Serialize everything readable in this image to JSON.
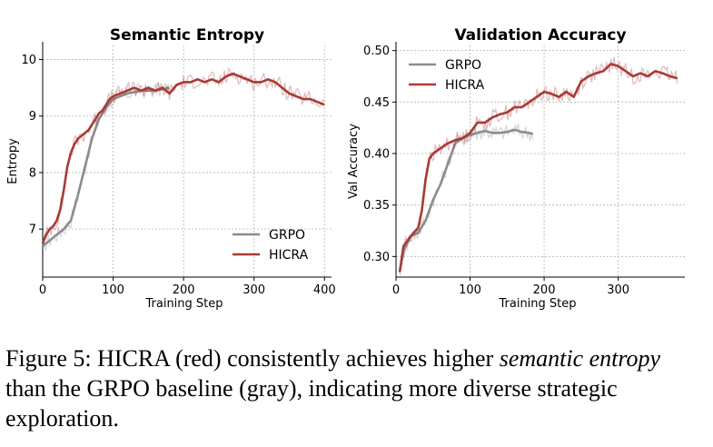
{
  "caption": {
    "prefix": "Figure 5: HICRA (red) consistently achieves higher ",
    "italic_1": "semantic entropy",
    "middle": " than the GRPO baseline (gray), indicating more diverse strategic exploration.",
    "full_text": "Figure 5: HICRA (red) consistently achieves higher semantic entropy than the GRPO baseline (gray), indicating more diverse strategic exploration."
  },
  "colors": {
    "grpo": "#8c8c8c",
    "hicra": "#a83a36"
  },
  "chart_data": [
    {
      "type": "line",
      "title": "Semantic Entropy",
      "xlabel": "Training Step",
      "ylabel": "Entropy",
      "xlim": [
        0,
        410
      ],
      "ylim": [
        6.15,
        10.25
      ],
      "xticks": [
        0,
        100,
        200,
        300,
        400
      ],
      "yticks": [
        7,
        8,
        9,
        10
      ],
      "grid": true,
      "legend_position": "lower-right",
      "series": [
        {
          "name": "GRPO",
          "x": [
            0,
            10,
            20,
            30,
            40,
            50,
            60,
            70,
            80,
            90,
            100,
            120,
            140,
            160,
            180
          ],
          "y": [
            6.7,
            6.8,
            6.9,
            7.0,
            7.15,
            7.6,
            8.1,
            8.6,
            8.95,
            9.15,
            9.3,
            9.4,
            9.45,
            9.45,
            9.5
          ]
        },
        {
          "name": "HICRA",
          "x": [
            0,
            5,
            10,
            15,
            20,
            25,
            30,
            35,
            40,
            45,
            50,
            55,
            60,
            65,
            70,
            75,
            80,
            85,
            90,
            95,
            100,
            110,
            120,
            130,
            140,
            150,
            160,
            170,
            180,
            190,
            200,
            210,
            220,
            230,
            240,
            250,
            260,
            270,
            280,
            290,
            300,
            310,
            320,
            330,
            340,
            350,
            360,
            370,
            380,
            390,
            400
          ],
          "y": [
            6.75,
            6.9,
            7.0,
            7.05,
            7.15,
            7.35,
            7.7,
            8.1,
            8.35,
            8.5,
            8.6,
            8.65,
            8.7,
            8.75,
            8.85,
            8.95,
            9.05,
            9.1,
            9.2,
            9.3,
            9.35,
            9.4,
            9.45,
            9.5,
            9.45,
            9.5,
            9.45,
            9.5,
            9.4,
            9.55,
            9.6,
            9.6,
            9.65,
            9.6,
            9.65,
            9.6,
            9.7,
            9.75,
            9.7,
            9.65,
            9.6,
            9.6,
            9.65,
            9.6,
            9.5,
            9.4,
            9.35,
            9.3,
            9.3,
            9.25,
            9.2
          ]
        }
      ]
    },
    {
      "type": "line",
      "title": "Validation Accuracy",
      "xlabel": "Training Step",
      "ylabel": "Val Accuracy",
      "xlim": [
        0,
        390
      ],
      "ylim": [
        0.28,
        0.505
      ],
      "xticks": [
        0,
        100,
        200,
        300
      ],
      "yticks": [
        0.3,
        0.35,
        0.4,
        0.45,
        0.5
      ],
      "grid": true,
      "legend_position": "top-left",
      "series": [
        {
          "name": "GRPO",
          "x": [
            5,
            10,
            20,
            30,
            40,
            50,
            60,
            70,
            80,
            90,
            100,
            110,
            120,
            130,
            140,
            150,
            160,
            170,
            180,
            185
          ],
          "y": [
            0.285,
            0.305,
            0.32,
            0.323,
            0.335,
            0.355,
            0.37,
            0.39,
            0.41,
            0.415,
            0.418,
            0.42,
            0.422,
            0.42,
            0.42,
            0.421,
            0.423,
            0.421,
            0.42,
            0.419
          ]
        },
        {
          "name": "HICRA",
          "x": [
            5,
            10,
            20,
            30,
            35,
            40,
            45,
            50,
            60,
            70,
            80,
            90,
            100,
            110,
            120,
            130,
            140,
            150,
            160,
            170,
            180,
            190,
            200,
            210,
            220,
            230,
            240,
            250,
            260,
            270,
            280,
            290,
            300,
            310,
            320,
            330,
            340,
            350,
            360,
            370,
            380
          ],
          "y": [
            0.285,
            0.31,
            0.32,
            0.328,
            0.345,
            0.375,
            0.395,
            0.4,
            0.405,
            0.41,
            0.413,
            0.415,
            0.42,
            0.43,
            0.43,
            0.435,
            0.438,
            0.44,
            0.445,
            0.445,
            0.45,
            0.455,
            0.46,
            0.458,
            0.455,
            0.46,
            0.455,
            0.47,
            0.475,
            0.478,
            0.48,
            0.487,
            0.485,
            0.48,
            0.475,
            0.478,
            0.475,
            0.48,
            0.478,
            0.475,
            0.473
          ]
        }
      ]
    }
  ]
}
